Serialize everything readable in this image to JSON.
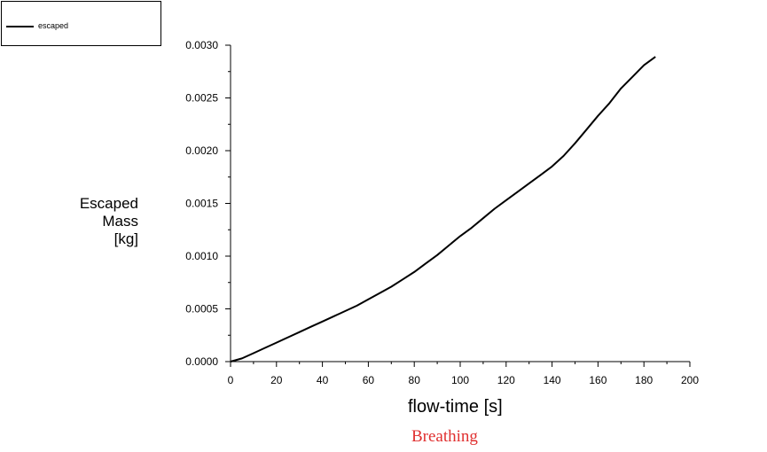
{
  "chart_data": {
    "type": "line",
    "title": "",
    "caption": "Breathing",
    "xlabel": "flow-time [s]",
    "ylabel_lines": [
      "Escaped",
      "Mass",
      "[kg]"
    ],
    "xlim": [
      0,
      200
    ],
    "ylim": [
      0,
      0.003
    ],
    "xticks": [
      "0",
      "20",
      "40",
      "60",
      "80",
      "100",
      "120",
      "140",
      "160",
      "180",
      "200"
    ],
    "yticks": [
      "0.0000",
      "0.0005",
      "0.0010",
      "0.0015",
      "0.0020",
      "0.0025",
      "0.0030"
    ],
    "legend": {
      "position": "top-left",
      "entries": [
        "escaped"
      ]
    },
    "grid": false,
    "series": [
      {
        "name": "escaped",
        "color": "#000000",
        "x": [
          0,
          5,
          10,
          15,
          20,
          25,
          30,
          35,
          40,
          45,
          50,
          55,
          60,
          65,
          70,
          75,
          80,
          85,
          90,
          95,
          100,
          105,
          110,
          115,
          120,
          125,
          130,
          135,
          140,
          145,
          150,
          155,
          160,
          165,
          170,
          175,
          180,
          185
        ],
        "values": [
          0.0,
          3e-05,
          8e-05,
          0.00013,
          0.00018,
          0.00023,
          0.00028,
          0.00033,
          0.00038,
          0.00043,
          0.00048,
          0.00053,
          0.00059,
          0.00065,
          0.00071,
          0.00078,
          0.00085,
          0.00093,
          0.00101,
          0.0011,
          0.00119,
          0.00127,
          0.00136,
          0.00145,
          0.00153,
          0.00161,
          0.00169,
          0.00177,
          0.00185,
          0.00195,
          0.00207,
          0.0022,
          0.00233,
          0.00245,
          0.00259,
          0.0027,
          0.00281,
          0.00289
        ]
      }
    ]
  }
}
